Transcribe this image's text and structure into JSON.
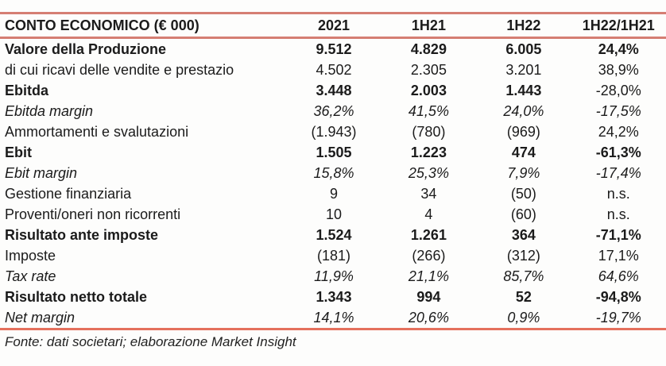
{
  "table": {
    "title": "CONTO ECONOMICO (€ 000)",
    "columns": [
      "2021",
      "1H21",
      "1H22",
      "1H22/1H21"
    ],
    "rows": [
      {
        "label": "Valore della Produzione",
        "values": [
          "9.512",
          "4.829",
          "6.005",
          "24,4%"
        ],
        "style": "bold"
      },
      {
        "label": "di cui ricavi delle vendite e prestazio",
        "values": [
          "4.502",
          "2.305",
          "3.201",
          "38,9%"
        ],
        "style": "regular"
      },
      {
        "label": "Ebitda",
        "values": [
          "3.448",
          "2.003",
          "1.443",
          "-28,0%"
        ],
        "style": "bold",
        "delta_style": "regular"
      },
      {
        "label": "Ebitda margin",
        "values": [
          "36,2%",
          "41,5%",
          "24,0%",
          "-17,5%"
        ],
        "style": "italic"
      },
      {
        "label": "Ammortamenti e svalutazioni",
        "values": [
          "(1.943)",
          "(780)",
          "(969)",
          "24,2%"
        ],
        "style": "regular"
      },
      {
        "label": "Ebit",
        "values": [
          "1.505",
          "1.223",
          "474",
          "-61,3%"
        ],
        "style": "bold"
      },
      {
        "label": "Ebit margin",
        "values": [
          "15,8%",
          "25,3%",
          "7,9%",
          "-17,4%"
        ],
        "style": "italic"
      },
      {
        "label": "Gestione finanziaria",
        "values": [
          "9",
          "34",
          "(50)",
          "n.s."
        ],
        "style": "regular"
      },
      {
        "label": "Proventi/oneri non ricorrenti",
        "values": [
          "10",
          "4",
          "(60)",
          "n.s."
        ],
        "style": "regular"
      },
      {
        "label": "Risultato ante imposte",
        "values": [
          "1.524",
          "1.261",
          "364",
          "-71,1%"
        ],
        "style": "bold"
      },
      {
        "label": "Imposte",
        "values": [
          "(181)",
          "(266)",
          "(312)",
          "17,1%"
        ],
        "style": "regular"
      },
      {
        "label": "Tax rate",
        "values": [
          "11,9%",
          "21,1%",
          "85,7%",
          "64,6%"
        ],
        "style": "italic"
      },
      {
        "label": "Risultato netto totale",
        "values": [
          "1.343",
          "994",
          "52",
          "-94,8%"
        ],
        "style": "bold"
      },
      {
        "label": "Net margin",
        "values": [
          "14,1%",
          "20,6%",
          "0,9%",
          "-19,7%"
        ],
        "style": "italic"
      }
    ]
  },
  "footer": {
    "source": "Fonte: dati societari; elaborazione Market Insight"
  },
  "colors": {
    "accent_line": "#d57e73",
    "bottom_line": "#e4705c",
    "text": "#1b1b1b"
  }
}
